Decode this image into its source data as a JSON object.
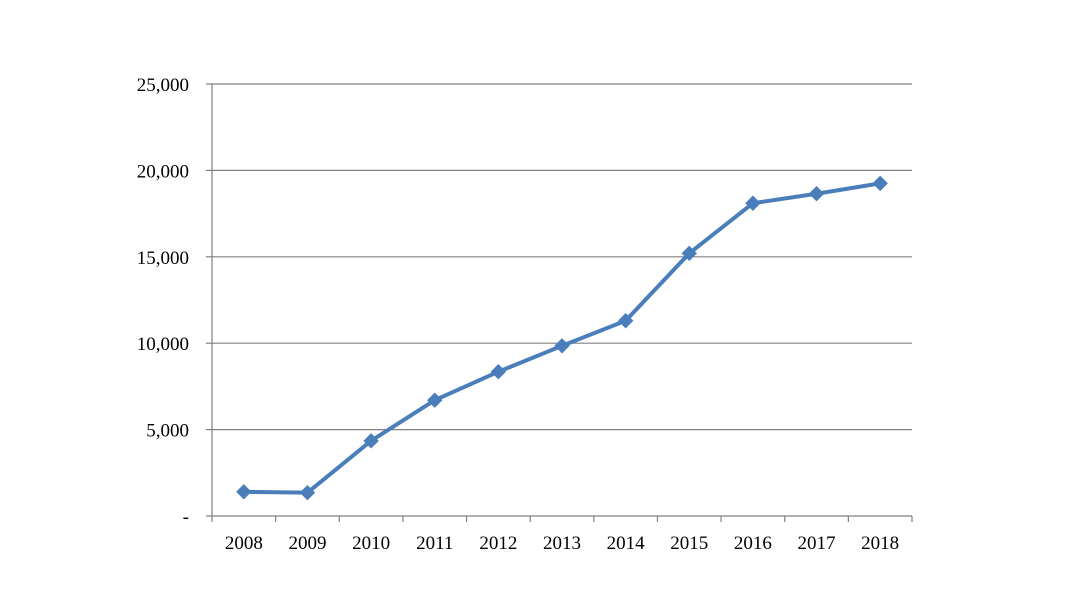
{
  "chart_data": {
    "type": "line",
    "title": "",
    "xlabel": "",
    "ylabel": "",
    "categories": [
      "2008",
      "2009",
      "2010",
      "2011",
      "2012",
      "2013",
      "2014",
      "2015",
      "2016",
      "2017",
      "2018"
    ],
    "series": [
      {
        "values": [
          1400,
          1350,
          4350,
          6700,
          8350,
          9850,
          11300,
          15200,
          18100,
          18650,
          19250
        ],
        "color": "#4a7ebb",
        "marker": "diamond"
      }
    ],
    "ylim": [
      0,
      25000
    ],
    "yticks": [
      0,
      5000,
      10000,
      15000,
      20000,
      25000
    ],
    "ytick_labels": [
      "-",
      "5,000",
      "10,000",
      "15,000",
      "20,000",
      "25,000"
    ],
    "grid": true,
    "grid_color": "#808080",
    "legend": "none"
  }
}
